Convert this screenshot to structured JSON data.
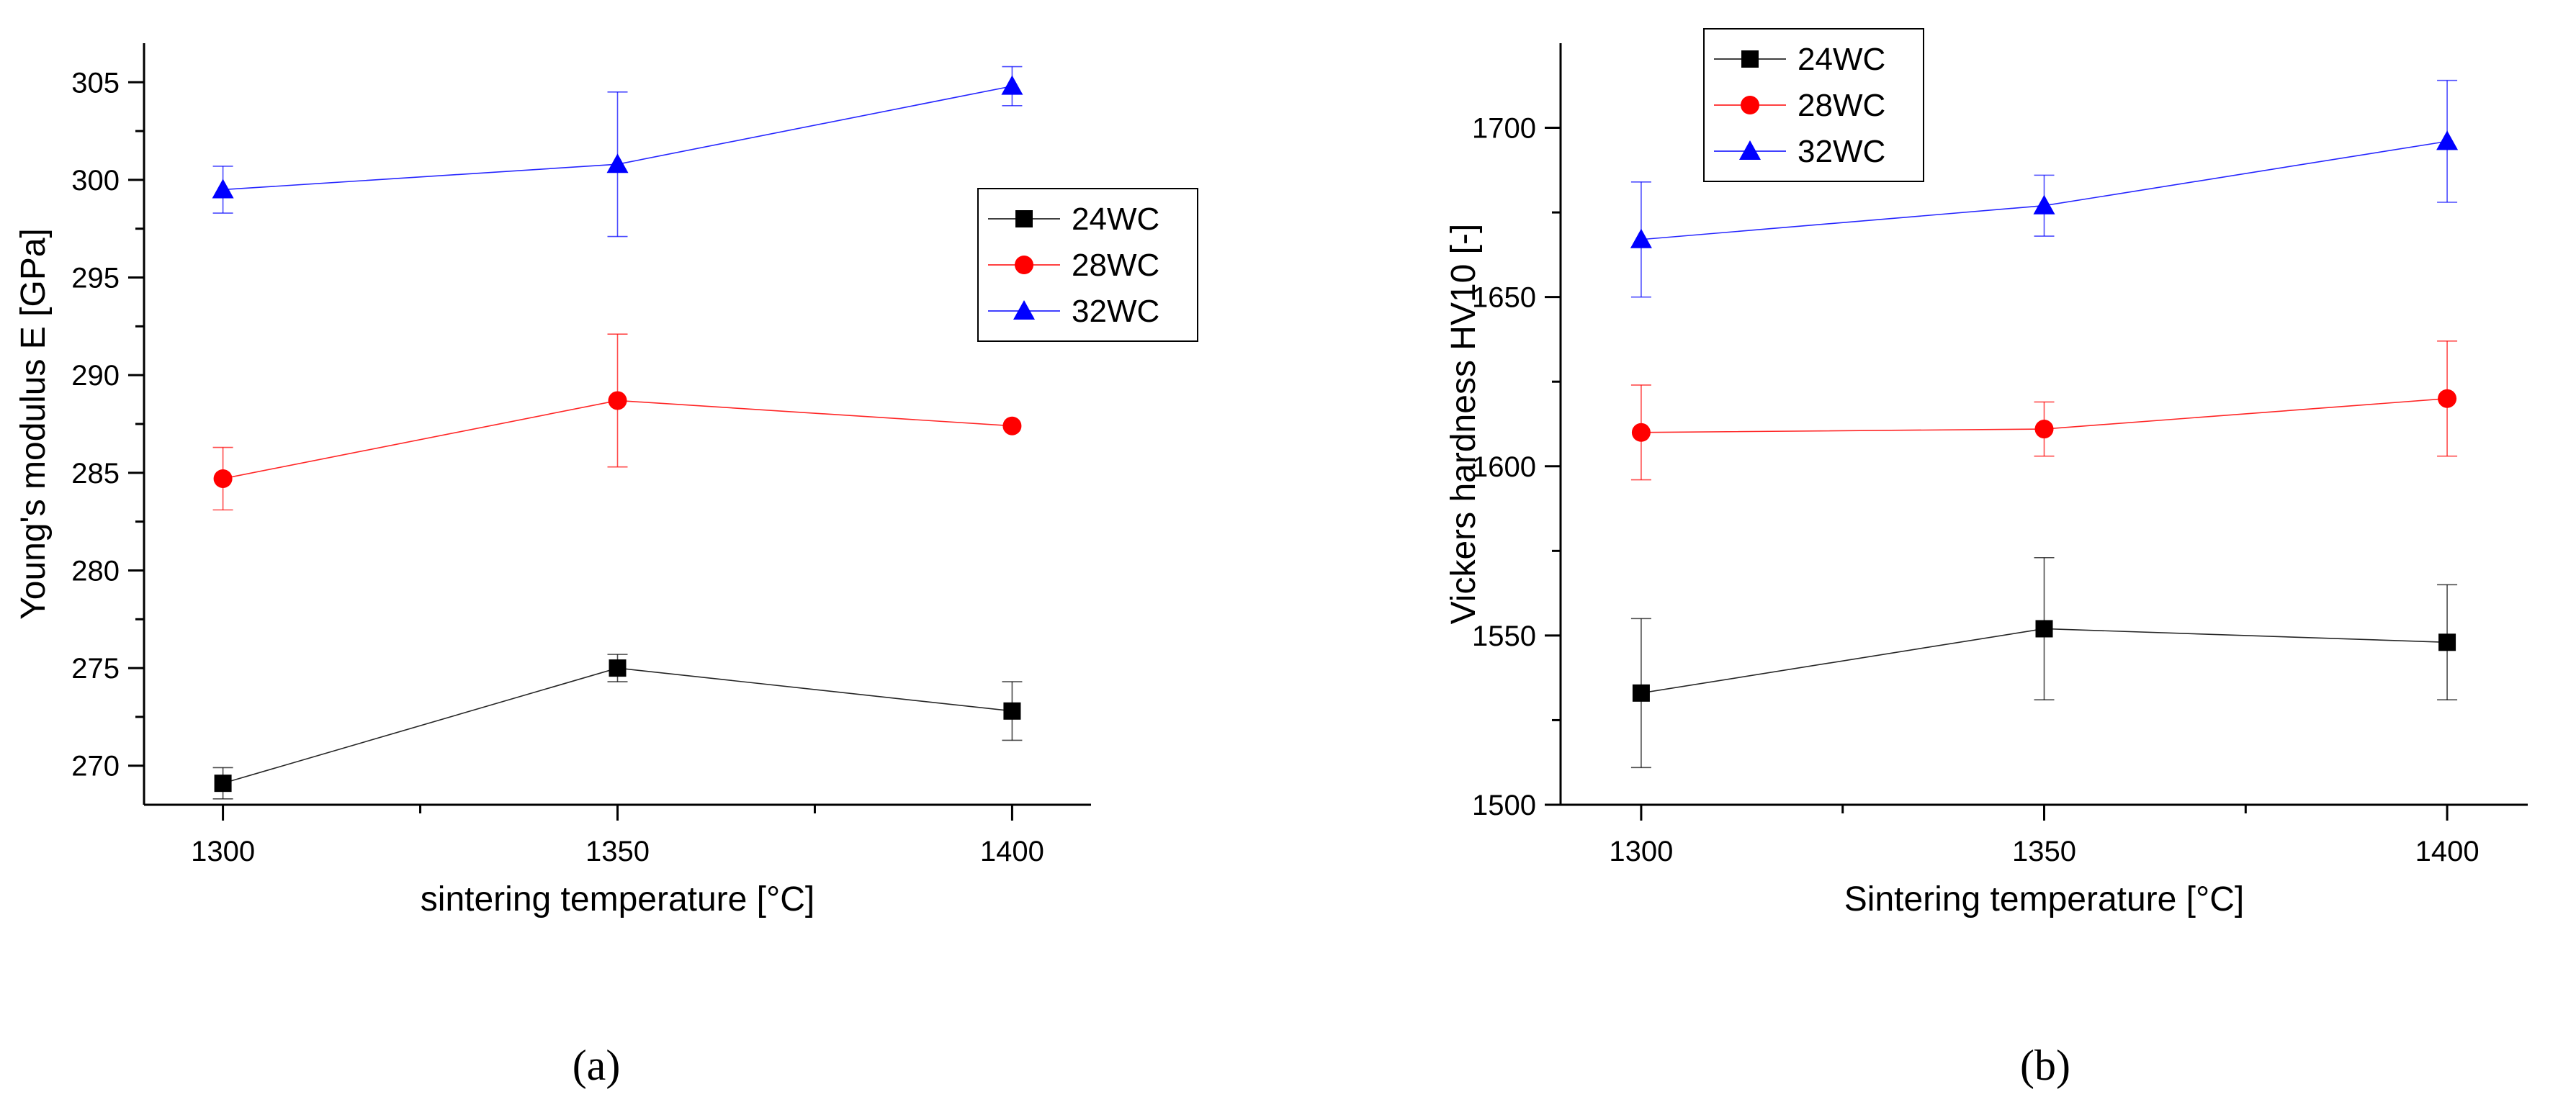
{
  "chart_data": [
    {
      "type": "line",
      "panel_label": "(a)",
      "title": "",
      "xlabel": "sintering temperature [°C]",
      "ylabel": "Young's modulus E [GPa]",
      "x": [
        1300,
        1350,
        1400
      ],
      "xticks": [
        1300,
        1350,
        1400
      ],
      "xlim": [
        1290,
        1410
      ],
      "ylim": [
        268,
        307
      ],
      "yticks": [
        270,
        275,
        280,
        285,
        290,
        295,
        300,
        305
      ],
      "grid": false,
      "legend_position": "top-right",
      "series": [
        {
          "name": "24WC",
          "color": "#000000",
          "marker": "square",
          "values": [
            269.1,
            275.0,
            272.8
          ],
          "errors": [
            0.8,
            0.7,
            1.5
          ]
        },
        {
          "name": "28WC",
          "color": "#ff0000",
          "marker": "circle",
          "values": [
            284.7,
            288.7,
            287.4
          ],
          "errors": [
            1.6,
            3.4,
            0.0
          ]
        },
        {
          "name": "32WC",
          "color": "#0000ff",
          "marker": "triangle",
          "values": [
            299.5,
            300.8,
            304.8
          ],
          "errors": [
            1.2,
            3.7,
            1.0
          ]
        }
      ]
    },
    {
      "type": "line",
      "panel_label": "(b)",
      "title": "",
      "xlabel": "Sintering temperature [°C]",
      "ylabel": "Vickers hardness HV10 [-]",
      "x": [
        1300,
        1350,
        1400
      ],
      "xticks": [
        1300,
        1350,
        1400
      ],
      "xlim": [
        1290,
        1410
      ],
      "ylim": [
        1500,
        1725
      ],
      "yticks": [
        1500,
        1550,
        1600,
        1650,
        1700
      ],
      "grid": false,
      "legend_position": "top-left",
      "series": [
        {
          "name": "24WC",
          "color": "#000000",
          "marker": "square",
          "values": [
            1533,
            1552,
            1548
          ],
          "errors": [
            22,
            21,
            17
          ]
        },
        {
          "name": "28WC",
          "color": "#ff0000",
          "marker": "circle",
          "values": [
            1610,
            1611,
            1620
          ],
          "errors": [
            14,
            8,
            17
          ]
        },
        {
          "name": "32WC",
          "color": "#0000ff",
          "marker": "triangle",
          "values": [
            1667,
            1677,
            1696
          ],
          "errors": [
            17,
            9,
            18
          ]
        }
      ]
    }
  ]
}
